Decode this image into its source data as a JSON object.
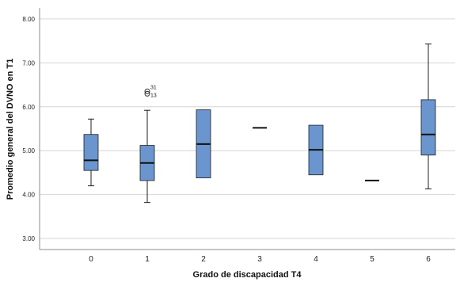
{
  "chart_data": {
    "type": "boxplot",
    "xlabel": "Grado de discapacidad T4",
    "ylabel": "Promedio general del DVNO en T1",
    "ylim": [
      2.75,
      8.25
    ],
    "yticks": [
      3.0,
      4.0,
      5.0,
      6.0,
      7.0,
      8.0
    ],
    "ytick_labels": [
      "3.00",
      "4.00",
      "5.00",
      "6.00",
      "7.00",
      "8.00"
    ],
    "categories": [
      "0",
      "1",
      "2",
      "3",
      "4",
      "5",
      "6"
    ],
    "grid": "horizontal",
    "box_color": "#6b95ce",
    "box_stroke": "#1f1f1f",
    "boxes": [
      {
        "category": "0",
        "whisker_low": 4.2,
        "q1": 4.55,
        "median": 4.78,
        "q3": 5.37,
        "whisker_high": 5.72
      },
      {
        "category": "1",
        "whisker_low": 3.82,
        "q1": 4.32,
        "median": 4.72,
        "q3": 5.12,
        "whisker_high": 5.92
      },
      {
        "category": "2",
        "whisker_low": 4.38,
        "q1": 4.38,
        "median": 5.15,
        "q3": 5.93,
        "whisker_high": 5.93
      },
      {
        "category": "3",
        "whisker_low": 5.52,
        "q1": 5.52,
        "median": 5.52,
        "q3": 5.52,
        "whisker_high": 5.52
      },
      {
        "category": "4",
        "whisker_low": 4.45,
        "q1": 4.45,
        "median": 5.02,
        "q3": 5.58,
        "whisker_high": 5.58
      },
      {
        "category": "5",
        "whisker_low": 4.32,
        "q1": 4.32,
        "median": 4.32,
        "q3": 4.32,
        "whisker_high": 4.32
      },
      {
        "category": "6",
        "whisker_low": 4.13,
        "q1": 4.9,
        "median": 5.37,
        "q3": 6.16,
        "whisker_high": 7.43
      }
    ],
    "outliers": [
      {
        "category": "1",
        "y": 6.35,
        "labels": [
          "31",
          "13"
        ]
      }
    ]
  }
}
